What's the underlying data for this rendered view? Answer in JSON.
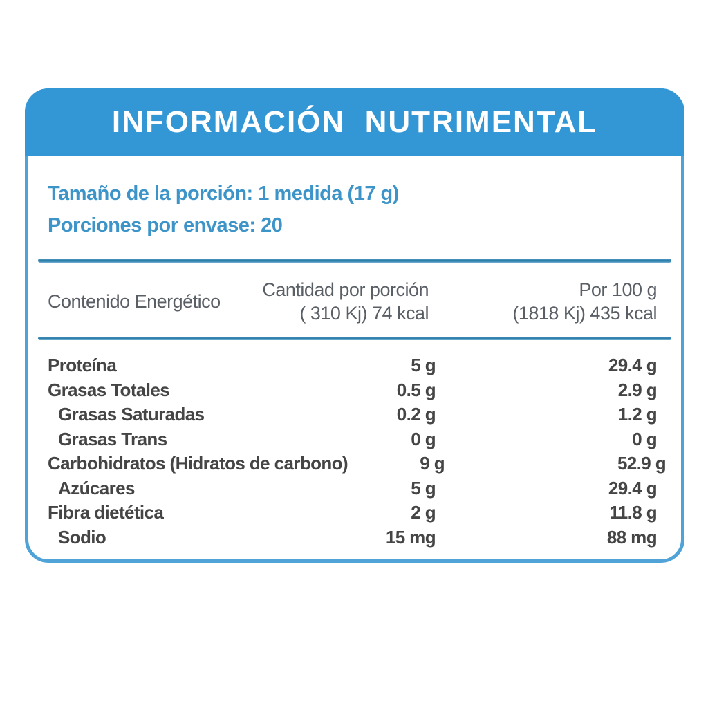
{
  "colors": {
    "header_bg": "#3397d5",
    "panel_border": "#4fa3d6",
    "accent_text": "#3d94c8",
    "rule_blue": "#2f80ad",
    "row_text": "#454545",
    "table_header_text": "#5a5f66",
    "background": "#ffffff",
    "title_text": "#ffffff"
  },
  "title": "INFORMACIÓN  NUTRIMENTAL",
  "serving": {
    "line1": "Tamaño de la porción: 1 medida (17 g)",
    "line2": "Porciones por envase: 20"
  },
  "table": {
    "header": {
      "col1": "Contenido Energético",
      "col2_line1": "Cantidad por porción",
      "col2_line2": "( 310 Kj) 74 kcal",
      "col3_line1": "Por 100 g",
      "col3_line2": "(1818 Kj) 435 kcal"
    },
    "rows": [
      {
        "label": "Proteína",
        "indent": false,
        "per_serving": "5 g",
        "per_100g": "29.4 g"
      },
      {
        "label": "Grasas Totales",
        "indent": false,
        "per_serving": "0.5 g",
        "per_100g": "2.9 g"
      },
      {
        "label": "Grasas Saturadas",
        "indent": true,
        "per_serving": "0.2 g",
        "per_100g": "1.2 g"
      },
      {
        "label": "Grasas Trans",
        "indent": true,
        "per_serving": "0 g",
        "per_100g": "0 g"
      },
      {
        "label": "Carbohidratos (Hidratos de carbono)",
        "indent": false,
        "per_serving": "9 g",
        "per_100g": "52.9 g"
      },
      {
        "label": "Azúcares",
        "indent": true,
        "per_serving": "5 g",
        "per_100g": "29.4 g"
      },
      {
        "label": "Fibra dietética",
        "indent": false,
        "per_serving": "2 g",
        "per_100g": "11.8 g"
      },
      {
        "label": "Sodio",
        "indent": true,
        "per_serving": "15 mg",
        "per_100g": "88 mg"
      }
    ]
  }
}
